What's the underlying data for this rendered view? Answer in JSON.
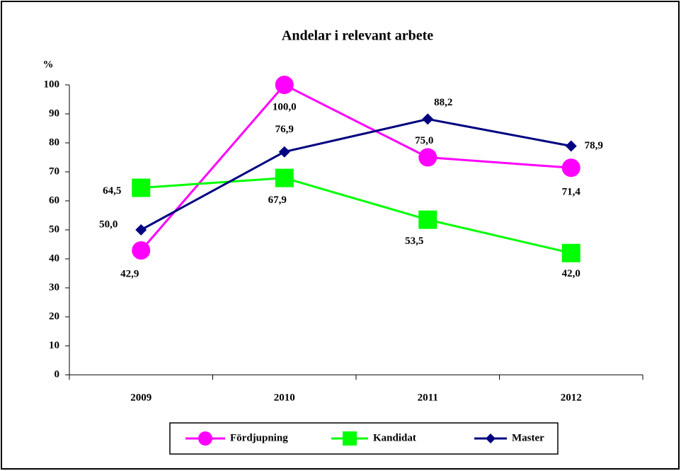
{
  "chart_data": {
    "type": "line",
    "title": "Andelar i relevant arbete",
    "y_label": "%",
    "categories": [
      "2009",
      "2010",
      "2011",
      "2012"
    ],
    "series": [
      {
        "name": "Fördjupning",
        "color": "#ff00ff",
        "marker": "circle",
        "values": [
          42.9,
          100.0,
          75.0,
          71.4
        ],
        "value_labels": [
          "42,9",
          "100,0",
          "75,0",
          "71,4"
        ]
      },
      {
        "name": "Kandidat",
        "color": "#00ff00",
        "marker": "square",
        "values": [
          64.5,
          67.9,
          53.5,
          42.0
        ],
        "value_labels": [
          "64,5",
          "67,9",
          "53,5",
          "42,0"
        ]
      },
      {
        "name": "Master",
        "color": "#000080",
        "marker": "diamond",
        "values": [
          50.0,
          76.9,
          88.2,
          78.9
        ],
        "value_labels": [
          "50,0",
          "76,9",
          "88,2",
          "78,9"
        ]
      }
    ],
    "ylim": [
      0,
      100
    ],
    "yticks": [
      0,
      10,
      20,
      30,
      40,
      50,
      60,
      70,
      80,
      90,
      100
    ],
    "grid": false,
    "legend": "bottom"
  }
}
